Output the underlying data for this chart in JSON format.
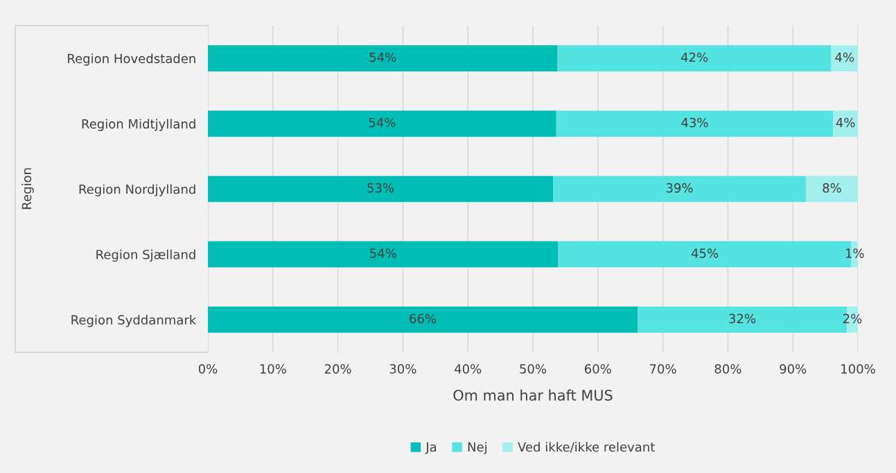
{
  "chart_data": {
    "type": "bar",
    "orientation": "horizontal",
    "stacked": true,
    "xlabel": "Om man har haft MUS",
    "ylabel": "Region",
    "categories": [
      "Region Hovedstaden",
      "Region Midtjylland",
      "Region Nordjylland",
      "Region Sjælland",
      "Region Syddanmark"
    ],
    "series": [
      {
        "name": "Ja",
        "color": "#00bdb6",
        "values": [
          53.8,
          53.6,
          53.1,
          53.9,
          66.1
        ],
        "value_labels": [
          "54%",
          "54%",
          "53%",
          "54%",
          "66%"
        ]
      },
      {
        "name": "Nej",
        "color": "#54e3e0",
        "values": [
          42.1,
          42.6,
          38.9,
          45.1,
          32.2
        ],
        "value_labels": [
          "42%",
          "43%",
          "39%",
          "45%",
          "32%"
        ]
      },
      {
        "name": "Ved ikke/ikke relevant",
        "color": "#a3efee",
        "values": [
          4.1,
          3.8,
          8.0,
          1.0,
          1.7
        ],
        "value_labels": [
          "4%",
          "4%",
          "8%",
          "1%",
          "2%"
        ]
      }
    ],
    "xlim": [
      0,
      100
    ],
    "xticks": [
      {
        "value": 0,
        "label": "0%"
      },
      {
        "value": 10,
        "label": "10%"
      },
      {
        "value": 20,
        "label": "20%"
      },
      {
        "value": 30,
        "label": "30%"
      },
      {
        "value": 40,
        "label": "40%"
      },
      {
        "value": 50,
        "label": "50%"
      },
      {
        "value": 60,
        "label": "60%"
      },
      {
        "value": 70,
        "label": "70%"
      },
      {
        "value": 80,
        "label": "80%"
      },
      {
        "value": 90,
        "label": "90%"
      },
      {
        "value": 100,
        "label": "100%"
      }
    ],
    "grid": "x",
    "legend": "bottom"
  }
}
